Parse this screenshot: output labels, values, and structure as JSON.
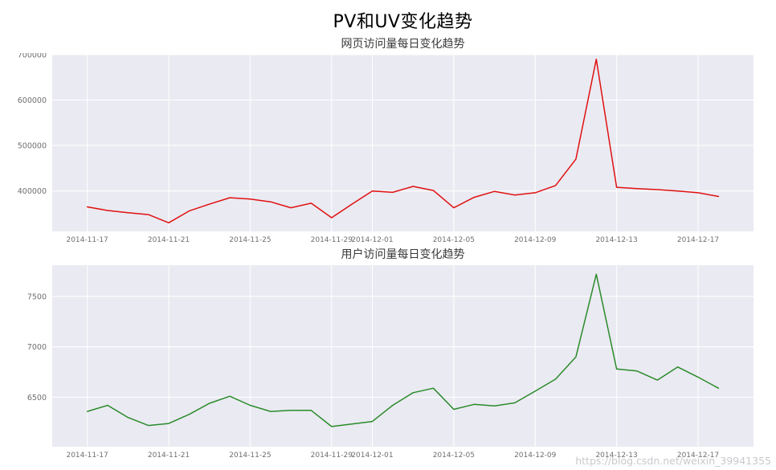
{
  "page": {
    "title": "PV和UV变化趋势"
  },
  "watermark": "https://blog.csdn.net/weixin_39941355",
  "chart_data": [
    {
      "type": "line",
      "title": "网页访问量每日变化趋势",
      "series_name": "PV",
      "color": "#e01010",
      "bg": "#eaeaf2",
      "grid": true,
      "legend": "none",
      "xlabel": "",
      "ylabel": "",
      "x": [
        "2014-11-17",
        "2014-11-18",
        "2014-11-19",
        "2014-11-20",
        "2014-11-21",
        "2014-11-22",
        "2014-11-23",
        "2014-11-24",
        "2014-11-25",
        "2014-11-26",
        "2014-11-27",
        "2014-11-28",
        "2014-11-29",
        "2014-11-30",
        "2014-12-01",
        "2014-12-02",
        "2014-12-03",
        "2014-12-04",
        "2014-12-05",
        "2014-12-06",
        "2014-12-07",
        "2014-12-08",
        "2014-12-09",
        "2014-12-10",
        "2014-12-11",
        "2014-12-12",
        "2014-12-13",
        "2014-12-14",
        "2014-12-15",
        "2014-12-16",
        "2014-12-17",
        "2014-12-18"
      ],
      "values": [
        365000,
        357000,
        352000,
        348000,
        330000,
        356000,
        371000,
        385000,
        382000,
        376000,
        363000,
        373000,
        341000,
        371000,
        400000,
        397000,
        410000,
        401000,
        363000,
        386000,
        399000,
        391000,
        396000,
        412000,
        470000,
        690000,
        408000,
        405000,
        403000,
        400000,
        396000,
        388000
      ],
      "ylim": [
        311000,
        700000
      ],
      "yticks": [
        400000,
        500000,
        600000,
        700000
      ],
      "xticks": [
        {
          "i": 0,
          "label": "2014-11-17"
        },
        {
          "i": 4,
          "label": "2014-11-21"
        },
        {
          "i": 8,
          "label": "2014-11-25"
        },
        {
          "i": 12,
          "label": "2014-11-29"
        },
        {
          "i": 14,
          "label": "2014-12-01"
        },
        {
          "i": 18,
          "label": "2014-12-05"
        },
        {
          "i": 22,
          "label": "2014-12-09"
        },
        {
          "i": 26,
          "label": "2014-12-13"
        },
        {
          "i": 30,
          "label": "2014-12-17"
        }
      ]
    },
    {
      "type": "line",
      "title": "用户访问量每日变化趋势",
      "series_name": "UV",
      "color": "#2a8b2a",
      "bg": "#eaeaf2",
      "grid": true,
      "legend": "none",
      "xlabel": "",
      "ylabel": "",
      "x": [
        "2014-11-17",
        "2014-11-18",
        "2014-11-19",
        "2014-11-20",
        "2014-11-21",
        "2014-11-22",
        "2014-11-23",
        "2014-11-24",
        "2014-11-25",
        "2014-11-26",
        "2014-11-27",
        "2014-11-28",
        "2014-11-29",
        "2014-11-30",
        "2014-12-01",
        "2014-12-02",
        "2014-12-03",
        "2014-12-04",
        "2014-12-05",
        "2014-12-06",
        "2014-12-07",
        "2014-12-08",
        "2014-12-09",
        "2014-12-10",
        "2014-12-11",
        "2014-12-12",
        "2014-12-13",
        "2014-12-14",
        "2014-12-15",
        "2014-12-16",
        "2014-12-17",
        "2014-12-18"
      ],
      "values": [
        6360,
        6420,
        6300,
        6220,
        6240,
        6330,
        6440,
        6510,
        6420,
        6360,
        6370,
        6370,
        6210,
        6235,
        6260,
        6420,
        6545,
        6590,
        6380,
        6430,
        6415,
        6445,
        6560,
        6680,
        6900,
        7720,
        6780,
        6760,
        6670,
        6800,
        6700,
        6590
      ],
      "ylim": [
        6010,
        7810
      ],
      "yticks": [
        6500,
        7000,
        7500
      ],
      "xticks": [
        {
          "i": 0,
          "label": "2014-11-17"
        },
        {
          "i": 4,
          "label": "2014-11-21"
        },
        {
          "i": 8,
          "label": "2014-11-25"
        },
        {
          "i": 12,
          "label": "2014-11-29"
        },
        {
          "i": 14,
          "label": "2014-12-01"
        },
        {
          "i": 18,
          "label": "2014-12-05"
        },
        {
          "i": 22,
          "label": "2014-12-09"
        },
        {
          "i": 26,
          "label": "2014-12-13"
        },
        {
          "i": 30,
          "label": "2014-12-17"
        }
      ]
    }
  ]
}
